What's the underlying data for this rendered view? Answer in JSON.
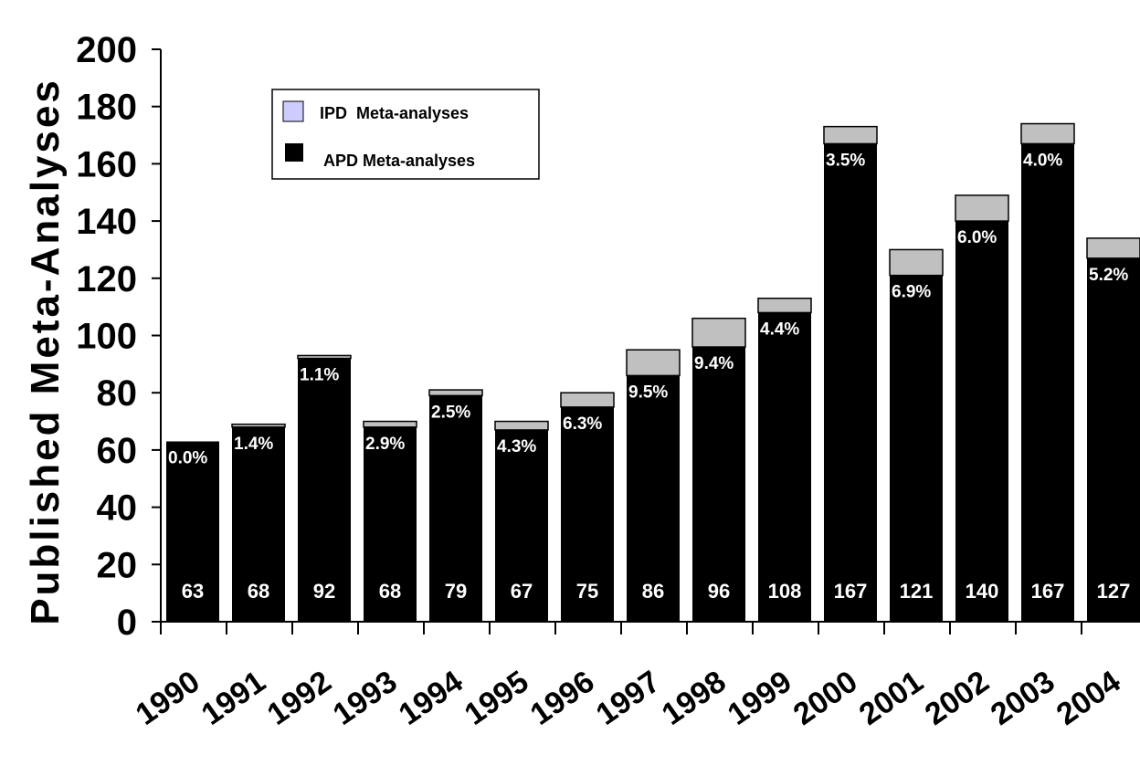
{
  "chart_data": {
    "type": "bar",
    "stacked": true,
    "ylabel": "Published Meta-Analyses",
    "xlabel": "",
    "ylim": [
      0,
      200
    ],
    "yticks": [
      0,
      20,
      40,
      60,
      80,
      100,
      120,
      140,
      160,
      180,
      200
    ],
    "categories": [
      "1990",
      "1991",
      "1992",
      "1993",
      "1994",
      "1995",
      "1996",
      "1997",
      "1998",
      "1999",
      "2000",
      "2001",
      "2002",
      "2003",
      "2004"
    ],
    "series": [
      {
        "name": "APD Meta-analyses",
        "color": "#000000",
        "values": [
          63,
          68,
          92,
          68,
          79,
          67,
          75,
          86,
          96,
          108,
          167,
          121,
          140,
          167,
          127
        ]
      },
      {
        "name": "IPD  Meta-analyses",
        "color": "#c0c0c0",
        "values": [
          0,
          1,
          1,
          2,
          2,
          3,
          5,
          9,
          10,
          5,
          6,
          9,
          9,
          7,
          7
        ]
      }
    ],
    "count_labels": [
      "63",
      "68",
      "92",
      "68",
      "79",
      "67",
      "75",
      "86",
      "96",
      "108",
      "167",
      "121",
      "140",
      "167",
      "127"
    ],
    "percent_labels": [
      "0.0%",
      "1.4%",
      "1.1%",
      "2.9%",
      "2.5%",
      "4.3%",
      "6.3%",
      "9.5%",
      "9.4%",
      "4.4%",
      "3.5%",
      "6.9%",
      "6.0%",
      "4.0%",
      "5.2%"
    ],
    "legend": {
      "position": "top-left",
      "items": [
        {
          "label": "IPD  Meta-analyses",
          "color": "#ccccff"
        },
        {
          "label": "APD Meta-analyses",
          "color": "#000000"
        }
      ]
    },
    "grid": false
  }
}
